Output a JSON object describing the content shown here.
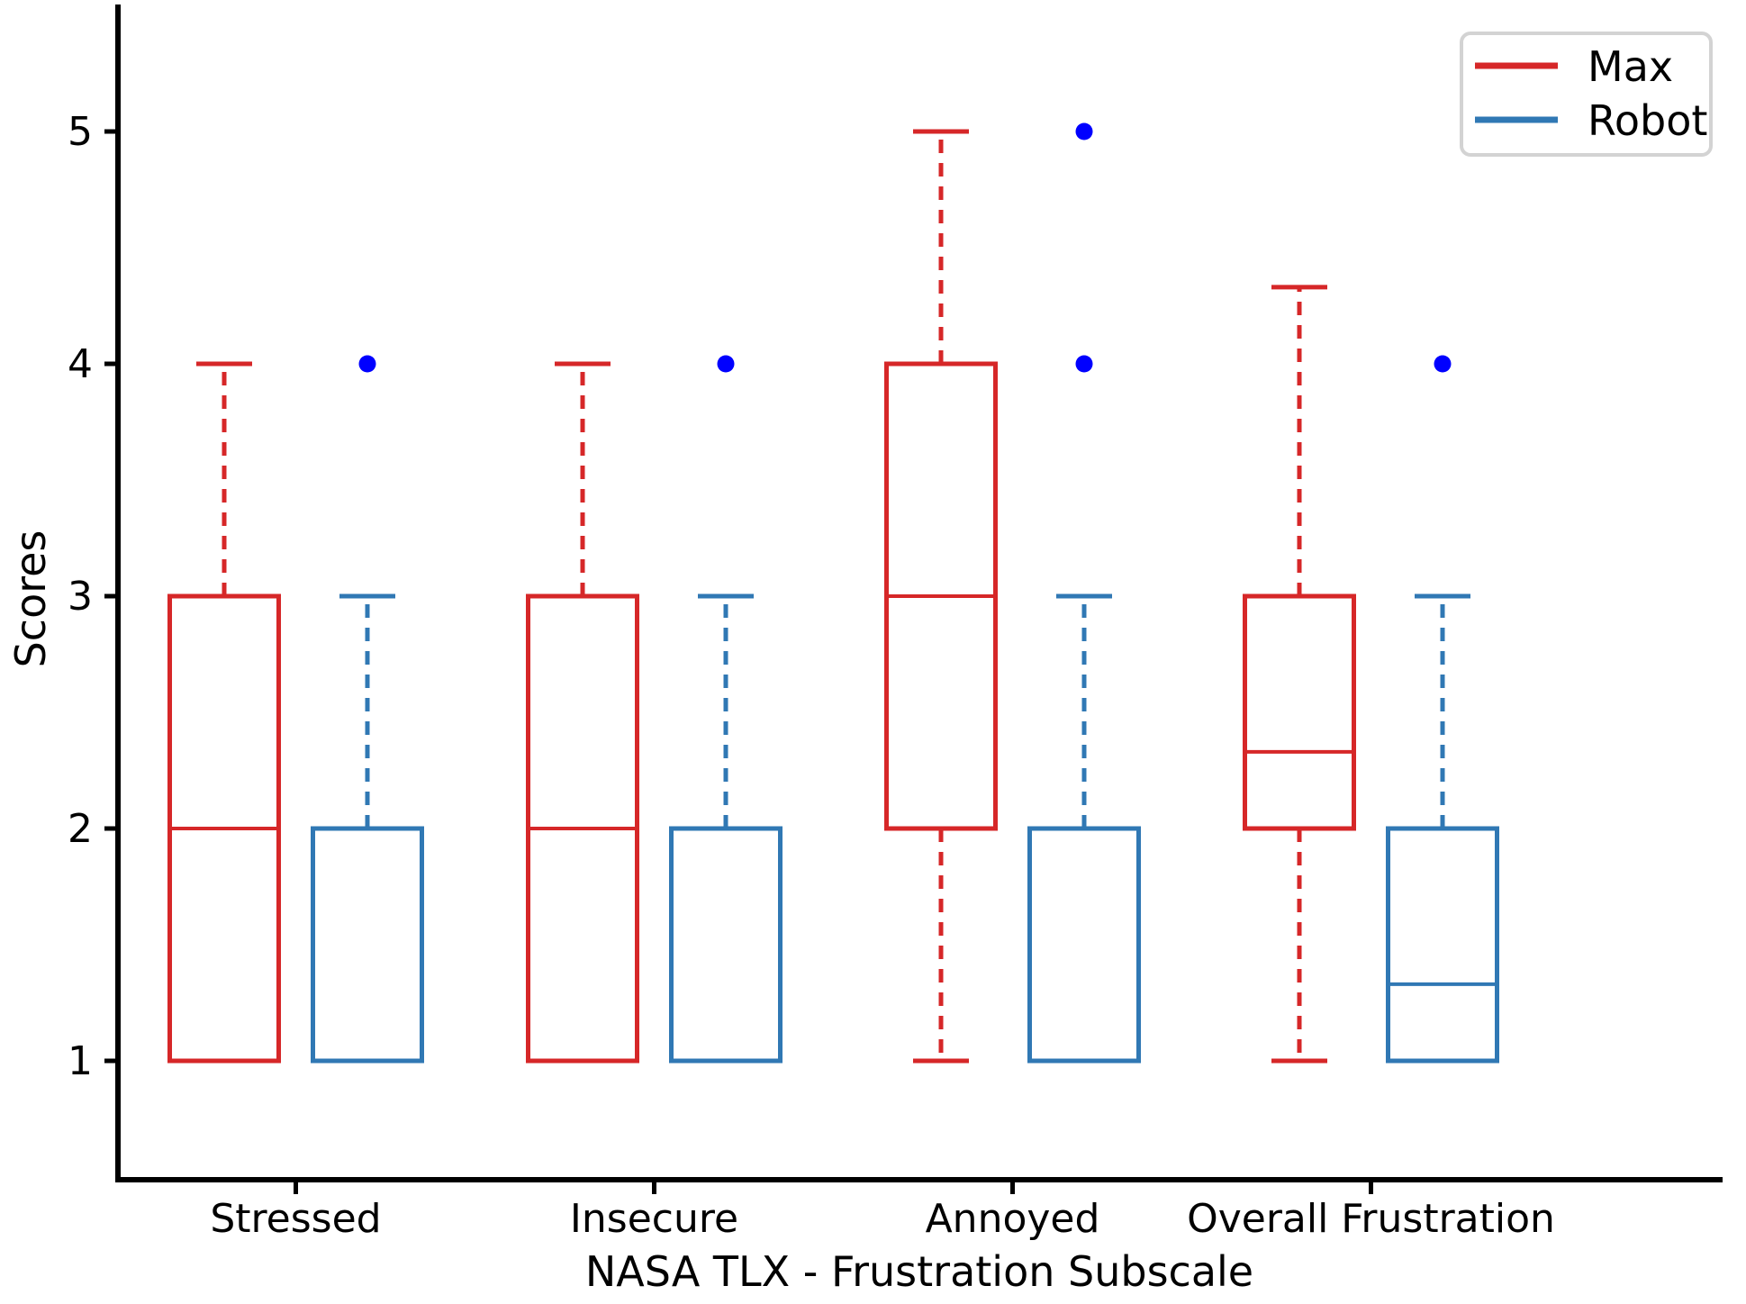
{
  "chart_data": {
    "type": "boxplot",
    "title": "",
    "xlabel": "NASA TLX - Frustration Subscale",
    "ylabel": "Scores",
    "categories": [
      "Stressed",
      "Insecure",
      "Annoyed",
      "Overall Frustration"
    ],
    "ytick_labels": [
      "1",
      "2",
      "3",
      "4",
      "5"
    ],
    "ytick_values": [
      1,
      2,
      3,
      4,
      5
    ],
    "ylim": [
      0.5,
      5.6
    ],
    "grid": false,
    "legend_position": "upper right",
    "whisker_style": "dashed",
    "series": [
      {
        "name": "Max",
        "color": "#d62728",
        "flier_color": "#0000ff",
        "boxes": [
          {
            "category": "Stressed",
            "whislo": 1,
            "q1": 1,
            "med": 2,
            "q3": 3,
            "whishi": 4,
            "fliers": []
          },
          {
            "category": "Insecure",
            "whislo": 1,
            "q1": 1,
            "med": 2,
            "q3": 3,
            "whishi": 4,
            "fliers": []
          },
          {
            "category": "Annoyed",
            "whislo": 1,
            "q1": 2,
            "med": 3,
            "q3": 4,
            "whishi": 5,
            "fliers": []
          },
          {
            "category": "Overall Frustration",
            "whislo": 1,
            "q1": 2,
            "med": 2.33,
            "q3": 3,
            "whishi": 4.33,
            "fliers": []
          }
        ]
      },
      {
        "name": "Robot",
        "color": "#3078b4",
        "flier_color": "#0000ff",
        "boxes": [
          {
            "category": "Stressed",
            "whislo": 1,
            "q1": 1,
            "med": 2,
            "q3": 2,
            "whishi": 3,
            "fliers": [
              4
            ]
          },
          {
            "category": "Insecure",
            "whislo": 1,
            "q1": 1,
            "med": 2,
            "q3": 2,
            "whishi": 3,
            "fliers": [
              4
            ]
          },
          {
            "category": "Annoyed",
            "whislo": 1,
            "q1": 1,
            "med": 2,
            "q3": 2,
            "whishi": 3,
            "fliers": [
              4,
              5
            ]
          },
          {
            "category": "Overall Frustration",
            "whislo": 1,
            "q1": 1,
            "med": 1.33,
            "q3": 2,
            "whishi": 3,
            "fliers": [
              4
            ]
          }
        ]
      }
    ]
  }
}
